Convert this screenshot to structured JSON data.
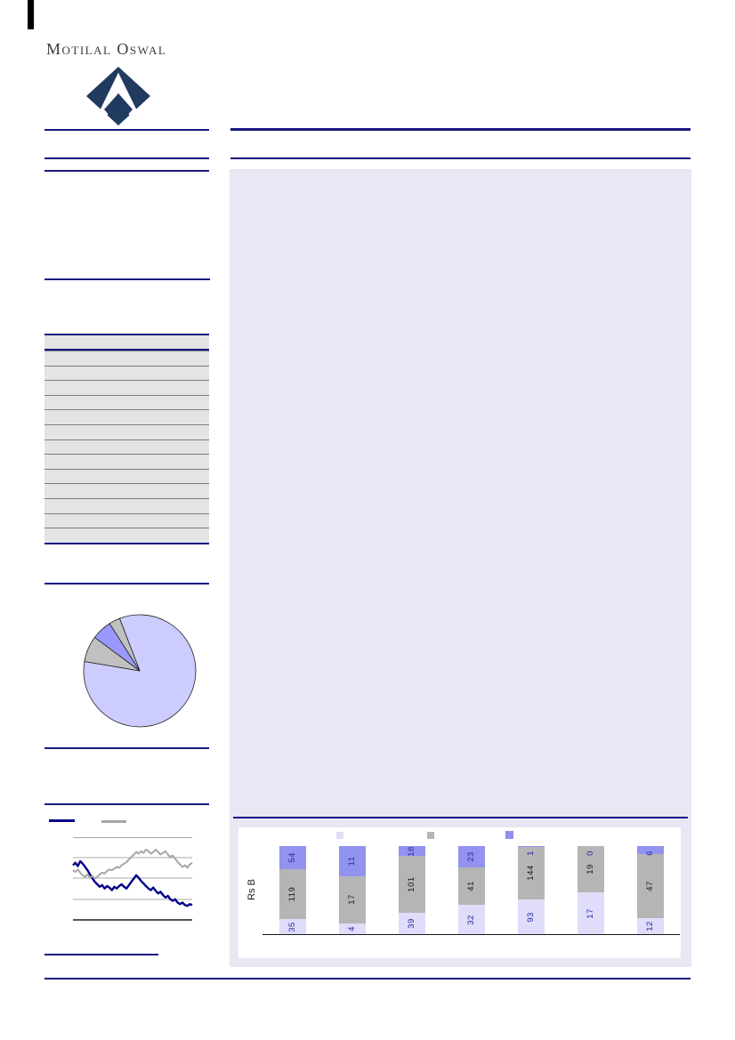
{
  "brand": {
    "name": "Motilal Oswal"
  },
  "colors": {
    "rule_navy": "#191980",
    "panel_lavender": "#e8e7f3",
    "table_row_gray": "#e4e4e4",
    "logo_navy": "#203a60"
  },
  "chart_data": [
    {
      "type": "pie",
      "title": "",
      "labels_visible": false,
      "start_angle_deg": 111,
      "slices": [
        {
          "name": "slice-large-lavender",
          "pct": 83.5,
          "color": "#ccccff"
        },
        {
          "name": "slice-gray-1",
          "pct": 7.5,
          "color": "#c0c0c0"
        },
        {
          "name": "slice-blue",
          "pct": 5.8,
          "color": "#9999ff"
        },
        {
          "name": "slice-gray-2",
          "pct": 3.2,
          "color": "#c0c0c0"
        }
      ]
    },
    {
      "type": "line",
      "title": "",
      "grid": true,
      "axis_labels_visible": false,
      "ylim": [
        0,
        100
      ],
      "legend": {
        "position": "top",
        "labels_visible": false,
        "swatch_colors": [
          "#00008b",
          "#a6a6a6"
        ]
      },
      "series": [
        {
          "name": "navy-series",
          "color": "#00008b",
          "values": [
            66,
            69,
            65,
            71,
            68,
            64,
            60,
            55,
            50,
            46,
            43,
            40,
            42,
            38,
            41,
            39,
            36,
            40,
            38,
            41,
            43,
            40,
            38,
            42,
            46,
            50,
            54,
            51,
            47,
            44,
            41,
            38,
            36,
            39,
            35,
            32,
            34,
            30,
            27,
            29,
            25,
            23,
            25,
            21,
            19,
            21,
            18,
            17,
            19,
            18
          ]
        },
        {
          "name": "gray-series",
          "color": "#a6a6a6",
          "values": [
            60,
            58,
            61,
            57,
            54,
            52,
            55,
            51,
            53,
            50,
            52,
            55,
            57,
            56,
            59,
            61,
            60,
            62,
            64,
            63,
            66,
            68,
            70,
            73,
            76,
            79,
            82,
            80,
            83,
            81,
            85,
            83,
            80,
            82,
            85,
            82,
            79,
            81,
            83,
            79,
            76,
            78,
            74,
            70,
            67,
            64,
            66,
            63,
            67,
            69
          ]
        }
      ]
    },
    {
      "type": "bar",
      "subtype": "stacked-100pct",
      "title": "",
      "ylabel": "Rs B",
      "categories": [
        "",
        "",
        "",
        "",
        "",
        "",
        ""
      ],
      "legend": {
        "position": "top",
        "labels_visible": false,
        "swatch_colors": [
          "#dfddf9",
          "#b5b5b5",
          "#8f8fee"
        ]
      },
      "series": [
        {
          "name": "segment-bottom",
          "color": "#dfddf9",
          "label_color": "#2929a3",
          "values": [
            35,
            4,
            39,
            32,
            93,
            17,
            12
          ]
        },
        {
          "name": "segment-middle",
          "color": "#b5b5b5",
          "label_color": "#1a1a1a",
          "values": [
            119,
            17,
            101,
            41,
            144,
            19,
            47
          ]
        },
        {
          "name": "segment-top",
          "color": "#9193ee",
          "label_color": "#2929a3",
          "values": [
            54,
            11,
            18,
            23,
            1,
            0,
            6
          ]
        }
      ]
    }
  ]
}
